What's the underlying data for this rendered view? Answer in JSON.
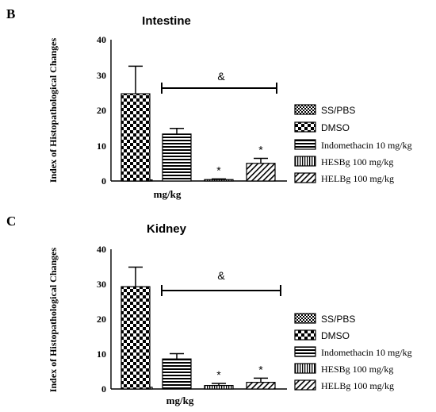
{
  "chart_data": [
    {
      "type": "bar",
      "panel_letter": "B",
      "title": "Intestine",
      "ylabel": "Index of Histopathological Changes",
      "xlabel": "mg/kg",
      "ylim": [
        0,
        40
      ],
      "yticks": [
        "0",
        "10",
        "20",
        "30",
        "40"
      ],
      "categories": [
        "SS/PBS",
        "DMSO",
        "Indomethacin 10 mg/kg",
        "HESBg 100 mg/kg",
        "HELBg 100 mg/kg"
      ],
      "values": [
        0.3,
        24.7,
        13.3,
        0.4,
        5.0
      ],
      "errors": [
        0.3,
        7.8,
        1.6,
        0.2,
        1.4
      ],
      "markers": [
        "",
        "",
        "",
        "*",
        "*"
      ],
      "bracket_label": "&",
      "legend_position": "right"
    },
    {
      "type": "bar",
      "panel_letter": "C",
      "title": "Kidney",
      "ylabel": "Index of Histopathological Changes",
      "xlabel": "mg/kg",
      "ylim": [
        0,
        40
      ],
      "yticks": [
        "0",
        "10",
        "20",
        "30",
        "40"
      ],
      "categories": [
        "SS/PBS",
        "DMSO",
        "Indomethacin 10 mg/kg",
        "HESBg 100 mg/kg",
        "HELBg 100 mg/kg"
      ],
      "values": [
        0.5,
        29.3,
        8.6,
        1.0,
        1.9
      ],
      "errors": [
        0.5,
        5.6,
        1.5,
        0.6,
        1.2
      ],
      "markers": [
        "",
        "",
        "",
        "*",
        "*"
      ],
      "bracket_label": "&",
      "legend_position": "right"
    }
  ]
}
